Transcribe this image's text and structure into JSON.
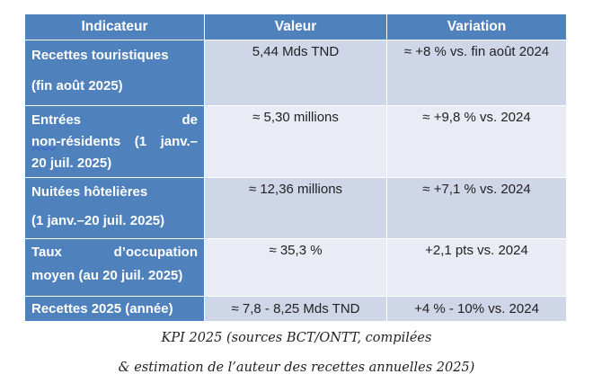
{
  "headers": [
    "Indicateur",
    "Valeur",
    "Variation"
  ],
  "rows": [
    {
      "label_lines": [
        "Recettes touristiques",
        "(fin août 2025)"
      ],
      "value": "5,44 Mds TND",
      "variation": "≈ +8 % vs. fin août 2024"
    },
    {
      "label_lines": [
        "Entrées de",
        "non-résidents (1 janv.–",
        "20 juil. 2025)"
      ],
      "value": "≈ 5,30 millions",
      "variation": "≈ +9,8 % vs. 2024"
    },
    {
      "label_lines": [
        "Nuitées hôtelières",
        "(1 janv.–20 juil. 2025)"
      ],
      "value": "≈ 12,36 millions",
      "variation": "≈ +7,1 % vs. 2024"
    },
    {
      "label_lines": [
        "Taux d’occupation",
        "moyen (au 20 juil. 2025)"
      ],
      "value": "≈ 35,3 %",
      "variation": "+2,1 pts vs. 2024"
    },
    {
      "label_lines": [
        "Recettes 2025 (année)"
      ],
      "value": "≈ 7,8 - 8,25 Mds TND",
      "variation": "+4 % - 10%  vs. 2024"
    }
  ],
  "caption": [
    "KPI 2025 (sources BCT/ONTT, compilées",
    "& estimation de l’auteur des recettes annuelles 2025)"
  ],
  "colors": {
    "header": "#4f81bd",
    "row_dark": "#cfd6e8",
    "row_light": "#e9ecf5"
  }
}
